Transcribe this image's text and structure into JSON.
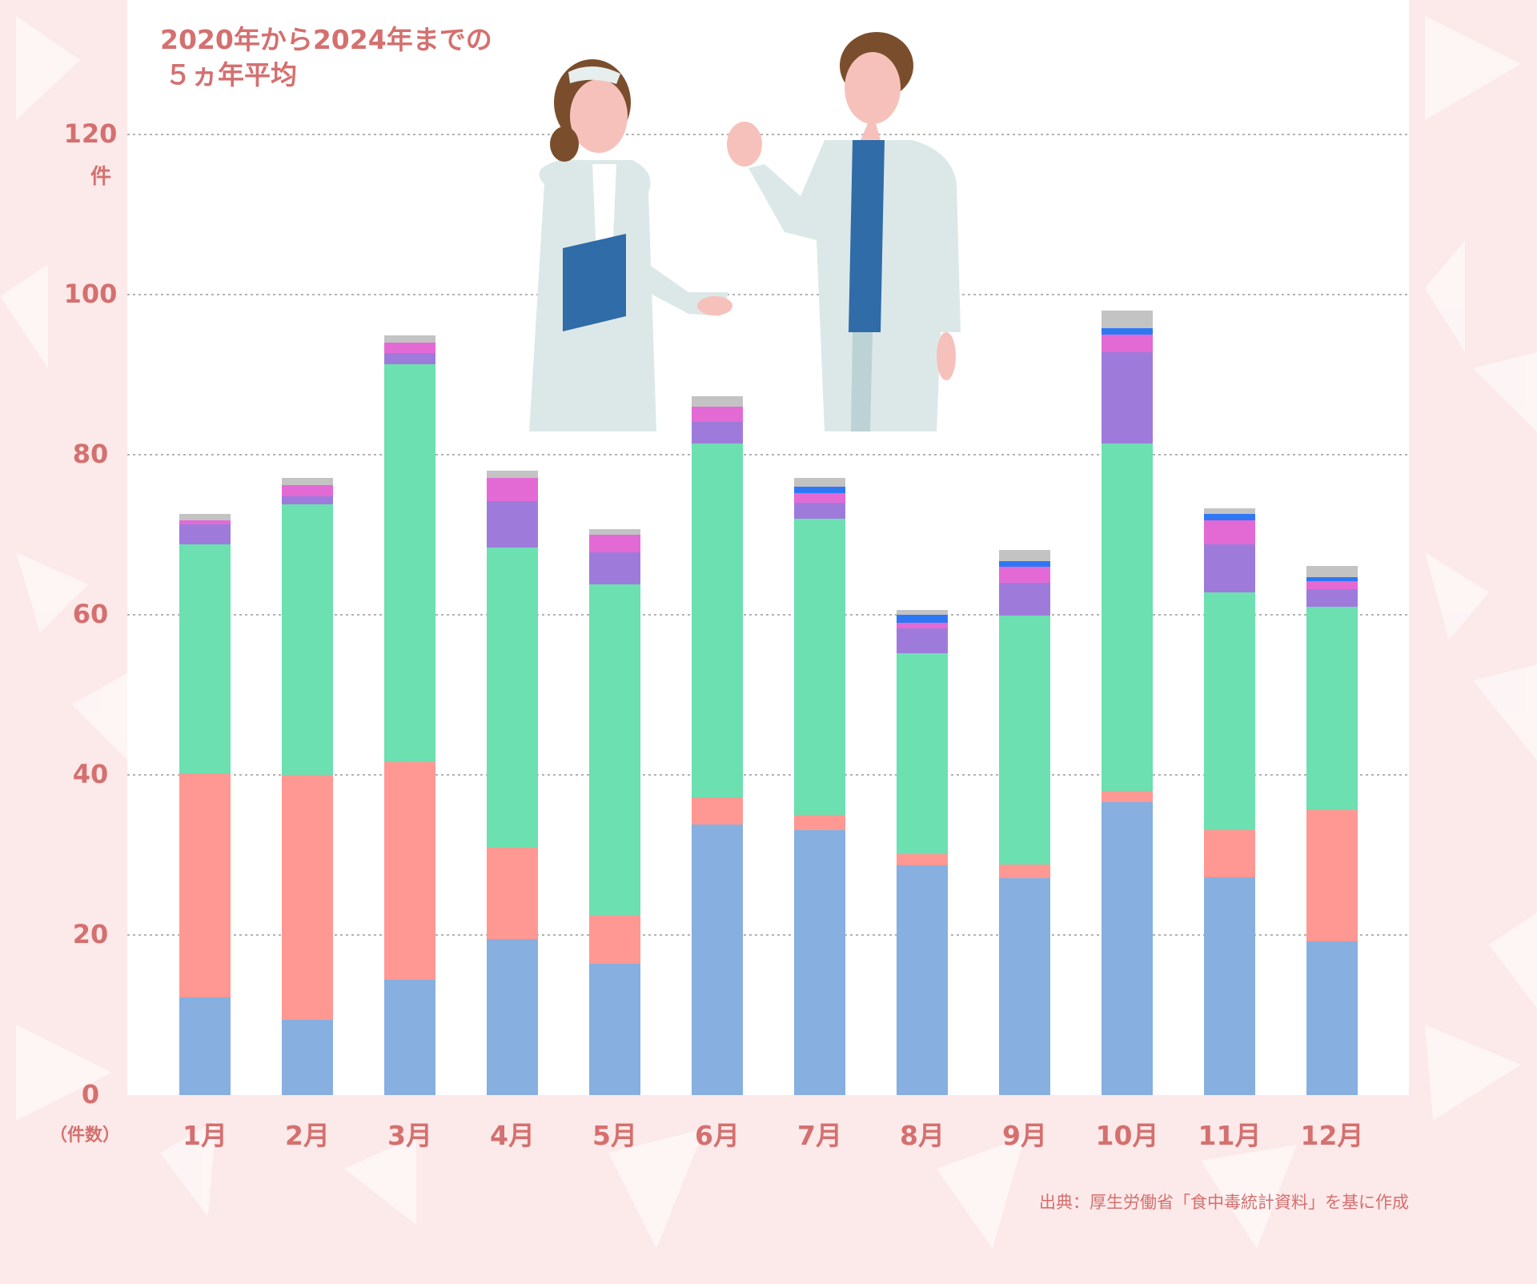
{
  "title_lines": [
    "2020年から2024年までの",
    "５ヵ年平均"
  ],
  "y_unit_top": "件",
  "y_unit_bottom": "（件数）",
  "source": "出典：厚生労働省「食中毒統計資料」を基に作成",
  "colors": {
    "text": "#d4706f",
    "background": "#fce9e9"
  },
  "chart_data": {
    "type": "bar",
    "stacked": true,
    "title": "2020年から2024年までの５ヵ年平均",
    "ylabel": "件",
    "ylim": [
      0,
      120
    ],
    "yticks": [
      0,
      20,
      40,
      60,
      80,
      100,
      120
    ],
    "grid": true,
    "categories": [
      "1月",
      "2月",
      "3月",
      "4月",
      "5月",
      "6月",
      "7月",
      "8月",
      "9月",
      "10月",
      "11月",
      "12月"
    ],
    "series": [
      {
        "color": "#87afe0",
        "values": [
          12.2,
          9.4,
          14.4,
          19.5,
          16.4,
          33.8,
          33.1,
          28.7,
          27.1,
          36.6,
          27.2,
          19.2
        ]
      },
      {
        "color": "#ff9893",
        "values": [
          28.0,
          30.6,
          27.2,
          11.4,
          6.1,
          3.4,
          1.9,
          1.4,
          1.7,
          1.4,
          5.9,
          16.4
        ]
      },
      {
        "color": "#6ce0b0",
        "values": [
          28.6,
          33.8,
          49.7,
          37.5,
          41.3,
          44.2,
          37.0,
          25.1,
          31.1,
          43.4,
          29.7,
          25.4
        ]
      },
      {
        "color": "#9e7bdb",
        "values": [
          2.5,
          1.0,
          1.4,
          5.8,
          4.0,
          2.7,
          2.0,
          3.1,
          4.1,
          11.4,
          6.0,
          2.2
        ]
      },
      {
        "color": "#e36ad4",
        "values": [
          0.5,
          1.4,
          1.3,
          2.9,
          2.2,
          1.9,
          1.2,
          0.7,
          2.0,
          2.2,
          3.0,
          1.0
        ]
      },
      {
        "color": "#2f78f5",
        "values": [
          0,
          0,
          0,
          0,
          0,
          0,
          0.8,
          1.0,
          0.7,
          0.8,
          0.8,
          0.5
        ]
      },
      {
        "color": "#c3c3c3",
        "values": [
          0.8,
          0.9,
          0.9,
          0.9,
          0.7,
          1.3,
          1.1,
          0.6,
          1.4,
          2.2,
          0.7,
          1.4
        ]
      }
    ]
  }
}
